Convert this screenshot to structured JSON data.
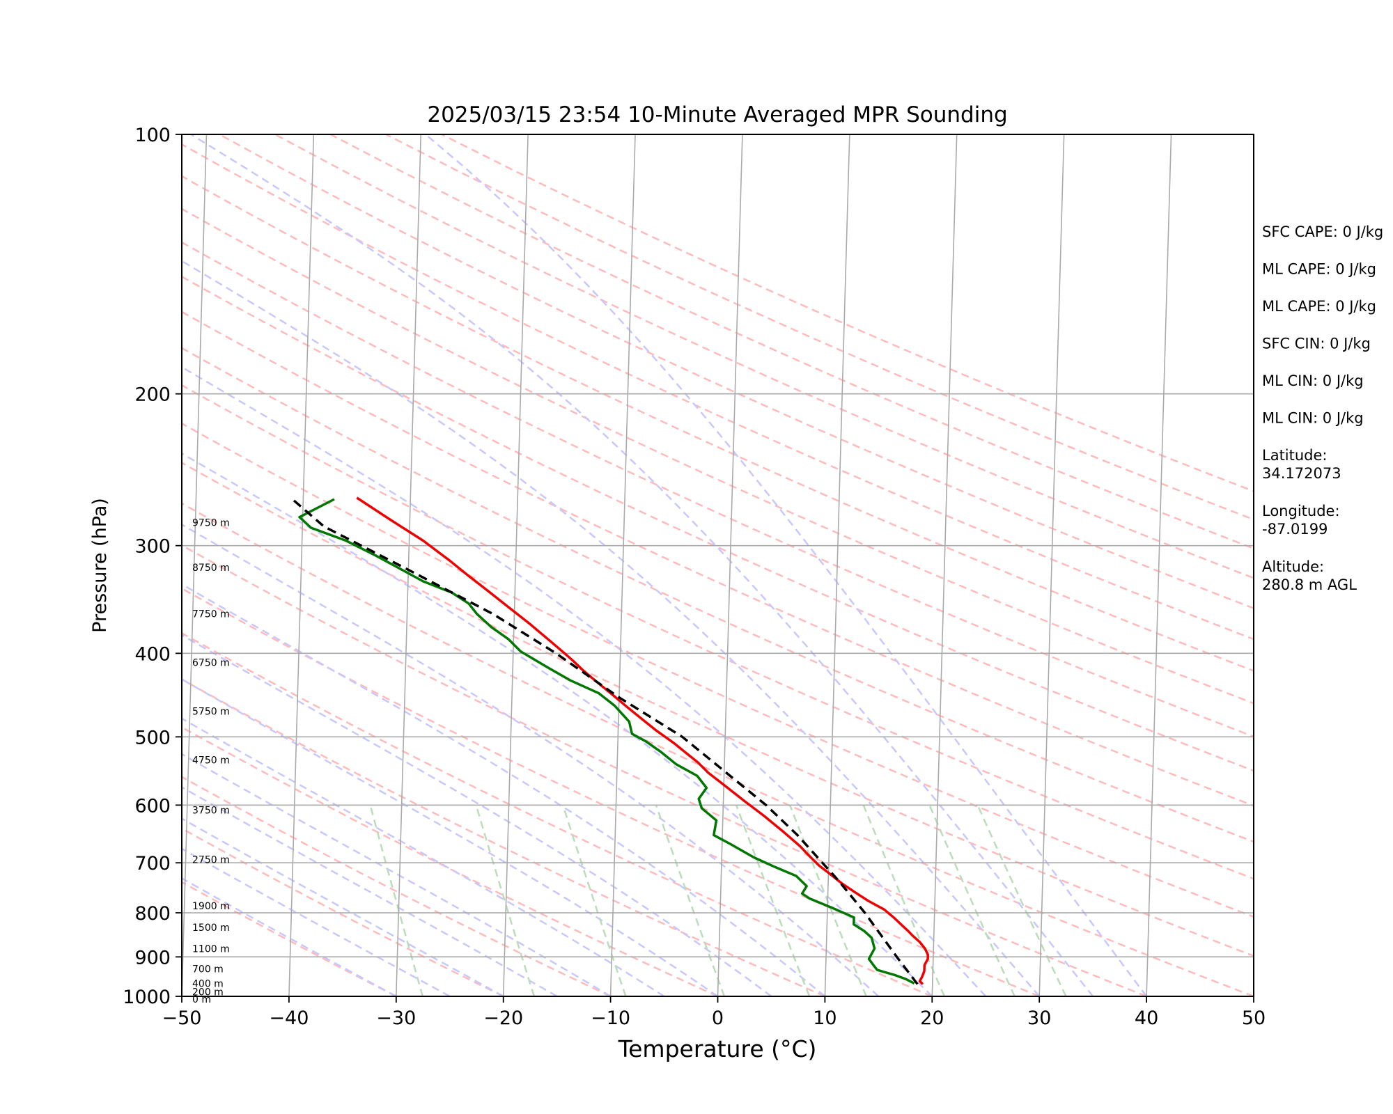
{
  "chart_data": {
    "type": "line",
    "title": "2025/03/15 23:54 10-Minute Averaged MPR Sounding",
    "xlabel": "Temperature (°C)",
    "ylabel": "Pressure (hPa)",
    "xlim": [
      -50,
      50
    ],
    "ylim": [
      1000,
      100
    ],
    "y_scale": "log",
    "x_ticks": [
      "−50",
      "−40",
      "−30",
      "−20",
      "−10",
      "0",
      "10",
      "20",
      "30",
      "40",
      "50"
    ],
    "y_ticks": [
      {
        "value": 100,
        "label": "100"
      },
      {
        "value": 200,
        "label": "200"
      },
      {
        "value": 300,
        "label": "300"
      },
      {
        "value": 400,
        "label": "400"
      },
      {
        "value": 500,
        "label": "500"
      },
      {
        "value": 600,
        "label": "600"
      },
      {
        "value": 700,
        "label": "700"
      },
      {
        "value": 800,
        "label": "800"
      },
      {
        "value": 900,
        "label": "900"
      },
      {
        "value": 1000,
        "label": "1000"
      }
    ],
    "grid": true,
    "skew": 45,
    "colors": {
      "temperature": "#ee0000",
      "dewpoint": "#007700",
      "parcel": "#000000",
      "isotherm": "#aaaaaa",
      "dry_adiabat": "#ffbbbb",
      "moist_adiabat": "#c8c8ff",
      "mixing_ratio": "#bbddbb"
    },
    "height_labels": [
      {
        "text": "9750 m",
        "p": 282
      },
      {
        "text": "8750 m",
        "p": 318
      },
      {
        "text": "7750 m",
        "p": 360
      },
      {
        "text": "6750 m",
        "p": 410
      },
      {
        "text": "5750 m",
        "p": 467
      },
      {
        "text": "4750 m",
        "p": 532
      },
      {
        "text": "3750 m",
        "p": 608
      },
      {
        "text": "2750 m",
        "p": 694
      },
      {
        "text": "1900 m",
        "p": 785
      },
      {
        "text": "1500 m",
        "p": 832
      },
      {
        "text": "1100 m",
        "p": 880
      },
      {
        "text": "700 m",
        "p": 929
      },
      {
        "text": "400 m",
        "p": 966
      },
      {
        "text": "200 m",
        "p": 988
      },
      {
        "text": "0 m",
        "p": 1007
      }
    ],
    "series": [
      {
        "key": "temperature",
        "points": [
          [
            19.1,
            968
          ],
          [
            18.8,
            960
          ],
          [
            19.0,
            950
          ],
          [
            19.2,
            935
          ],
          [
            19.2,
            920
          ],
          [
            19.5,
            905
          ],
          [
            19.5,
            895
          ],
          [
            19.2,
            880
          ],
          [
            18.7,
            865
          ],
          [
            18.0,
            850
          ],
          [
            17.6,
            840
          ],
          [
            16.9,
            825
          ],
          [
            16.2,
            810
          ],
          [
            15.3,
            793
          ],
          [
            13.8,
            775
          ],
          [
            12.5,
            757
          ],
          [
            11.3,
            740
          ],
          [
            10.2,
            722
          ],
          [
            9.1,
            705
          ],
          [
            8.1,
            686
          ],
          [
            7.3,
            670
          ],
          [
            5.6,
            643
          ],
          [
            3.8,
            617
          ],
          [
            2.0,
            594
          ],
          [
            0.3,
            572
          ],
          [
            -1.5,
            550
          ],
          [
            -2.5,
            535
          ],
          [
            -3.6,
            522
          ],
          [
            -4.8,
            508
          ],
          [
            -6.4,
            492
          ],
          [
            -7.7,
            478
          ],
          [
            -9.2,
            462
          ],
          [
            -10.7,
            446
          ],
          [
            -12.1,
            432
          ],
          [
            -13.4,
            419
          ],
          [
            -14.4,
            408
          ],
          [
            -15.2,
            400
          ],
          [
            -16.7,
            386
          ],
          [
            -18.5,
            370
          ],
          [
            -20.5,
            354
          ],
          [
            -22.6,
            338
          ],
          [
            -24.4,
            325
          ],
          [
            -26.2,
            312
          ],
          [
            -28.7,
            296
          ],
          [
            -31.8,
            280
          ],
          [
            -35.0,
            264
          ]
        ]
      },
      {
        "key": "dewpoint",
        "points": [
          [
            18.3,
            966
          ],
          [
            17.5,
            955
          ],
          [
            16.5,
            945
          ],
          [
            14.8,
            932
          ],
          [
            14.5,
            922
          ],
          [
            14.0,
            905
          ],
          [
            14.5,
            880
          ],
          [
            14.2,
            855
          ],
          [
            13.5,
            840
          ],
          [
            12.5,
            825
          ],
          [
            12.5,
            810
          ],
          [
            10.5,
            790
          ],
          [
            8.3,
            770
          ],
          [
            7.6,
            760
          ],
          [
            8.0,
            745
          ],
          [
            7.0,
            725
          ],
          [
            5.0,
            708
          ],
          [
            3.0,
            690
          ],
          [
            0.8,
            666
          ],
          [
            -0.8,
            650
          ],
          [
            -0.6,
            625
          ],
          [
            -2.0,
            605
          ],
          [
            -2.3,
            590
          ],
          [
            -1.6,
            573
          ],
          [
            -2.5,
            555
          ],
          [
            -4.5,
            538
          ],
          [
            -6.0,
            520
          ],
          [
            -7.4,
            506
          ],
          [
            -8.7,
            496
          ],
          [
            -9.0,
            480
          ],
          [
            -10.4,
            460
          ],
          [
            -11.9,
            445
          ],
          [
            -14.6,
            430
          ],
          [
            -16.8,
            415
          ],
          [
            -19.3,
            398
          ],
          [
            -20.5,
            385
          ],
          [
            -22.1,
            373
          ],
          [
            -23.5,
            360
          ],
          [
            -24.3,
            350
          ],
          [
            -25.9,
            340
          ],
          [
            -28.6,
            330
          ],
          [
            -31.0,
            318
          ],
          [
            -33.1,
            308
          ],
          [
            -35.9,
            296
          ],
          [
            -39.2,
            286
          ],
          [
            -40.3,
            278
          ],
          [
            -37.1,
            265
          ]
        ]
      },
      {
        "key": "parcel",
        "points": [
          [
            18.6,
            968
          ],
          [
            16.6,
            900
          ],
          [
            13.5,
            800
          ],
          [
            11.0,
            735
          ],
          [
            7.0,
            650
          ],
          [
            4.0,
            600
          ],
          [
            -4.0,
            500
          ],
          [
            -10.0,
            450
          ],
          [
            -16.0,
            400
          ],
          [
            -22.0,
            360
          ],
          [
            -30.0,
            320
          ],
          [
            -38.0,
            285
          ],
          [
            -41.0,
            265
          ]
        ]
      }
    ]
  },
  "stats": [
    {
      "lines": [
        "SFC CAPE: 0 J/kg"
      ]
    },
    {
      "lines": [
        "ML CAPE: 0 J/kg"
      ]
    },
    {
      "lines": [
        "ML CAPE: 0 J/kg"
      ]
    },
    {
      "lines": [
        "SFC CIN: 0 J/kg"
      ]
    },
    {
      "lines": [
        "ML CIN: 0 J/kg"
      ]
    },
    {
      "lines": [
        "ML CIN: 0 J/kg"
      ]
    },
    {
      "lines": [
        "Latitude:",
        "34.172073"
      ]
    },
    {
      "lines": [
        "Longitude:",
        "-87.0199"
      ]
    },
    {
      "lines": [
        "Altitude:",
        "280.8 m AGL"
      ]
    }
  ]
}
